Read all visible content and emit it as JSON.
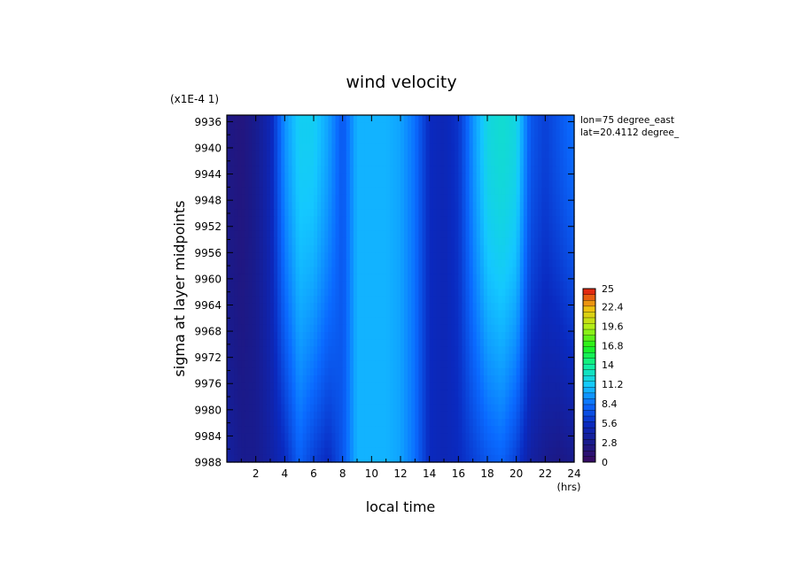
{
  "chart_data": {
    "type": "heatmap",
    "title": "wind velocity",
    "xlabel": "local time",
    "ylabel": "sigma at layer midpoints",
    "x_unit": "(hrs)",
    "y_scale_note": "(x1E-4 1)",
    "annotations": [
      "lon=75 degree_east",
      "lat=20.4112 degree_"
    ],
    "xlim": [
      0,
      24
    ],
    "ylim": [
      9988,
      9935
    ],
    "x_ticks": [
      2,
      4,
      6,
      8,
      10,
      12,
      14,
      16,
      18,
      20,
      22,
      24
    ],
    "x_tick_labels": [
      "2",
      "4",
      "6",
      "8",
      "10",
      "12",
      "14",
      "16",
      "18",
      "20",
      "22",
      "24"
    ],
    "y_ticks": [
      9936,
      9940,
      9944,
      9948,
      9952,
      9956,
      9960,
      9964,
      9968,
      9972,
      9976,
      9980,
      9984,
      9988
    ],
    "y_tick_labels": [
      "9936",
      "9940",
      "9944",
      "9948",
      "9952",
      "9956",
      "9960",
      "9964",
      "9968",
      "9972",
      "9976",
      "9980",
      "9984",
      "9988"
    ],
    "colorbar": {
      "min": 0,
      "max": 25,
      "tick_values": [
        0,
        2.8,
        5.6,
        8.4,
        11.2,
        14,
        16.8,
        19.6,
        22.4,
        25
      ],
      "tick_labels": [
        "0",
        "2.8",
        "5.6",
        "8.4",
        "11.2",
        "14",
        "16.8",
        "19.6",
        "22.4",
        "25"
      ],
      "colors": [
        "#3a0a5e",
        "#1a1a8a",
        "#0a2ac0",
        "#0a6aff",
        "#14c8ff",
        "#10f0a0",
        "#18f018",
        "#b0f018",
        "#f0c010",
        "#e01010"
      ]
    },
    "profile_hours": [
      0,
      1,
      2,
      3,
      4,
      5,
      6,
      7,
      8,
      9,
      10,
      11,
      12,
      13,
      14,
      15,
      16,
      17,
      18,
      19,
      20,
      21,
      22,
      23,
      24
    ],
    "profile_top_values": [
      2.5,
      2.0,
      3.0,
      5.0,
      9.5,
      11.5,
      11.5,
      10.0,
      7.5,
      10.5,
      10.5,
      10.5,
      10.0,
      8.5,
      5.5,
      5.0,
      6.0,
      9.5,
      12.0,
      12.5,
      12.0,
      7.5,
      6.5,
      7.5,
      8.5
    ],
    "profile_bottom_values": [
      4.0,
      3.0,
      3.0,
      4.0,
      5.5,
      8.0,
      6.5,
      5.5,
      7.5,
      10.5,
      10.5,
      10.5,
      10.0,
      8.5,
      5.5,
      5.0,
      5.5,
      6.5,
      7.5,
      8.0,
      6.5,
      4.0,
      3.0,
      2.5,
      3.0
    ]
  }
}
